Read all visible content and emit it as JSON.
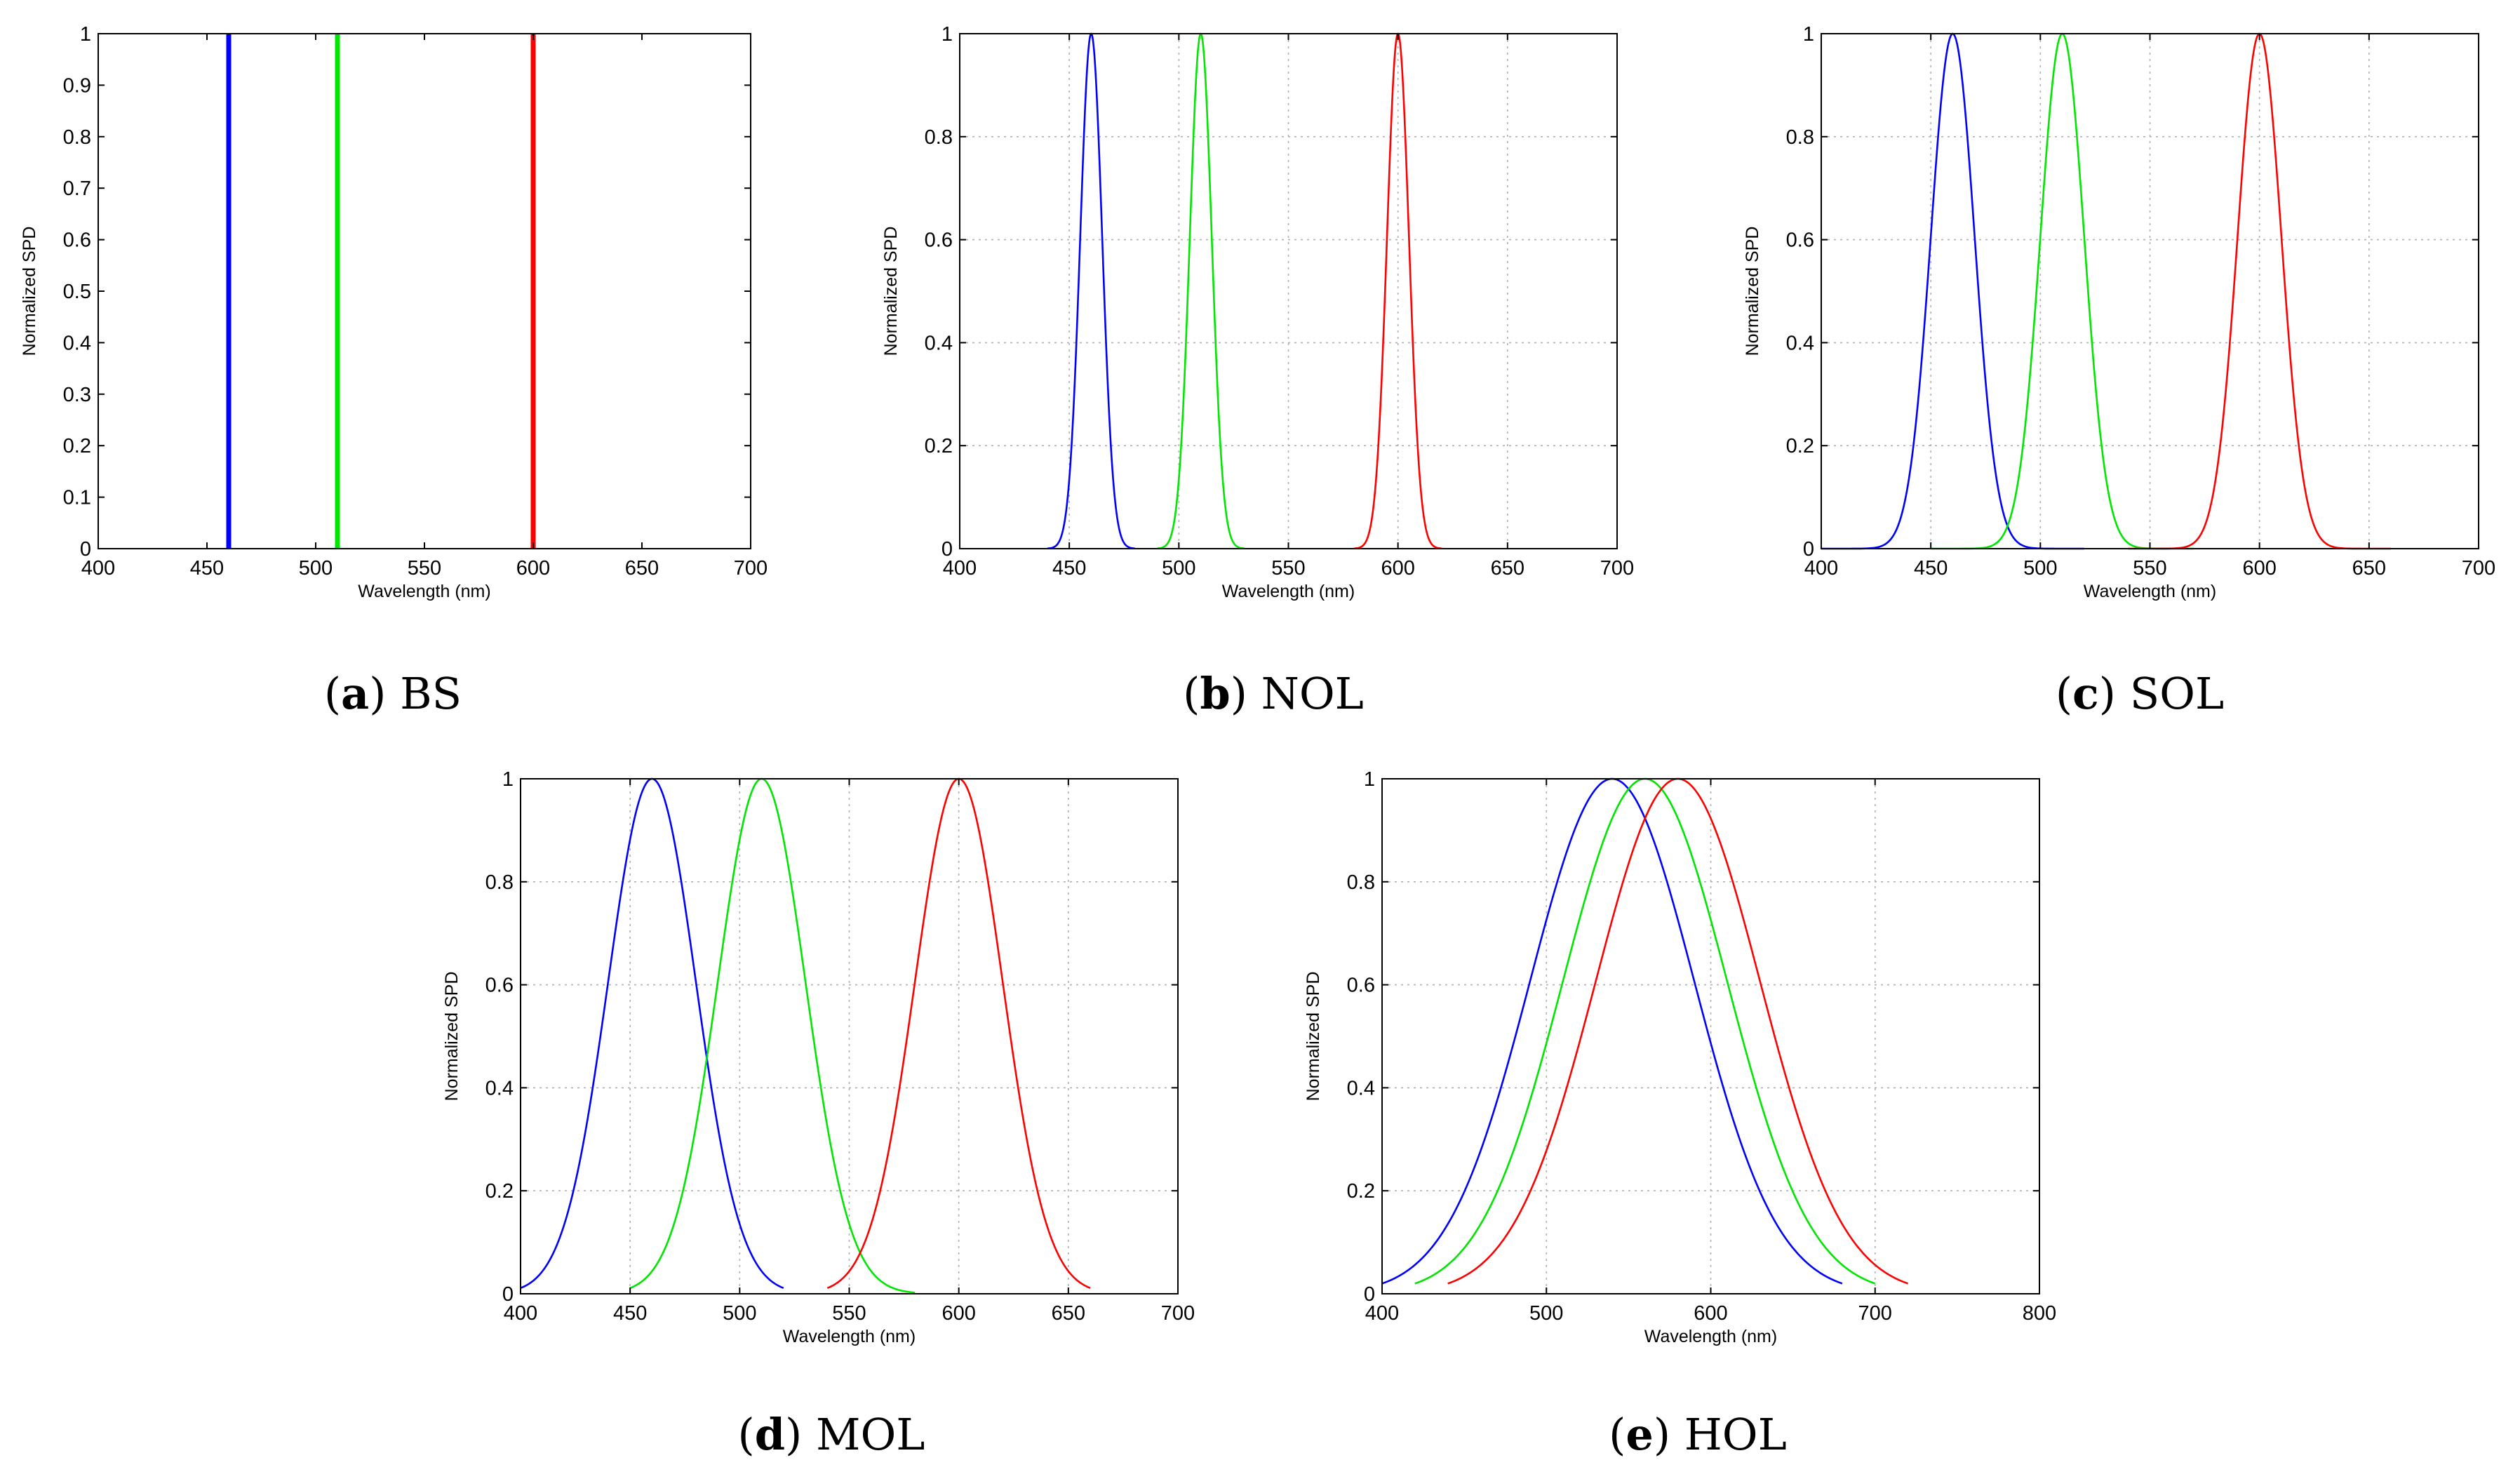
{
  "chart_data": [
    {
      "type": "line",
      "caption_letter": "a",
      "caption_name": "BS",
      "xlabel": "Wavelength (nm)",
      "ylabel": "Normalized SPD",
      "xlim": [
        400,
        700
      ],
      "ylim": [
        0,
        1
      ],
      "xticks": [
        400,
        450,
        500,
        550,
        600,
        650,
        700
      ],
      "yticks": [
        0,
        0.1,
        0.2,
        0.3,
        0.4,
        0.5,
        0.6,
        0.7,
        0.8,
        0.9,
        1
      ],
      "ytick_labels": [
        "0",
        "0.1",
        "0.2",
        "0.3",
        "0.4",
        "0.5",
        "0.6",
        "0.7",
        "0.8",
        "0.9",
        "1"
      ],
      "grid": false,
      "series": [
        {
          "name": "blue",
          "color": "#0000ff",
          "kind": "spike",
          "peak": 460
        },
        {
          "name": "green",
          "color": "#00e600",
          "kind": "spike",
          "peak": 510
        },
        {
          "name": "red",
          "color": "#ff0000",
          "kind": "spike",
          "peak": 600
        }
      ]
    },
    {
      "type": "line",
      "caption_letter": "b",
      "caption_name": "NOL",
      "xlabel": "Wavelength (nm)",
      "ylabel": "Normalized SPD",
      "xlim": [
        400,
        700
      ],
      "ylim": [
        0,
        1
      ],
      "xticks": [
        400,
        450,
        500,
        550,
        600,
        650,
        700
      ],
      "yticks": [
        0,
        0.2,
        0.4,
        0.6,
        0.8,
        1
      ],
      "ytick_labels": [
        "0",
        "0.2",
        "0.4",
        "0.6",
        "0.8",
        "1"
      ],
      "grid": true,
      "series": [
        {
          "name": "blue",
          "color": "#0000ff",
          "kind": "gaussian",
          "peak": 460,
          "sigma": 5,
          "range": [
            440,
            480
          ]
        },
        {
          "name": "green",
          "color": "#00e600",
          "kind": "gaussian",
          "peak": 510,
          "sigma": 5,
          "range": [
            490,
            530
          ]
        },
        {
          "name": "red",
          "color": "#ff0000",
          "kind": "gaussian",
          "peak": 600,
          "sigma": 5,
          "range": [
            580,
            620
          ]
        }
      ]
    },
    {
      "type": "line",
      "caption_letter": "c",
      "caption_name": "SOL",
      "xlabel": "Wavelength (nm)",
      "ylabel": "Normalized SPD",
      "xlim": [
        400,
        700
      ],
      "ylim": [
        0,
        1
      ],
      "xticks": [
        400,
        450,
        500,
        550,
        600,
        650,
        700
      ],
      "yticks": [
        0,
        0.2,
        0.4,
        0.6,
        0.8,
        1
      ],
      "ytick_labels": [
        "0",
        "0.2",
        "0.4",
        "0.6",
        "0.8",
        "1"
      ],
      "grid": true,
      "series": [
        {
          "name": "blue",
          "color": "#0000ff",
          "kind": "gaussian",
          "peak": 460,
          "sigma": 10,
          "range": [
            400,
            520
          ]
        },
        {
          "name": "green",
          "color": "#00e600",
          "kind": "gaussian",
          "peak": 510,
          "sigma": 10,
          "range": [
            450,
            570
          ]
        },
        {
          "name": "red",
          "color": "#ff0000",
          "kind": "gaussian",
          "peak": 600,
          "sigma": 10,
          "range": [
            540,
            660
          ]
        }
      ]
    },
    {
      "type": "line",
      "caption_letter": "d",
      "caption_name": "MOL",
      "xlabel": "Wavelength (nm)",
      "ylabel": "Normalized SPD",
      "xlim": [
        400,
        700
      ],
      "ylim": [
        0,
        1
      ],
      "xticks": [
        400,
        450,
        500,
        550,
        600,
        650,
        700
      ],
      "yticks": [
        0,
        0.2,
        0.4,
        0.6,
        0.8,
        1
      ],
      "ytick_labels": [
        "0",
        "0.2",
        "0.4",
        "0.6",
        "0.8",
        "1"
      ],
      "grid": true,
      "series": [
        {
          "name": "blue",
          "color": "#0000ff",
          "kind": "gaussian",
          "peak": 460,
          "sigma": 20,
          "range": [
            400,
            520
          ]
        },
        {
          "name": "green",
          "color": "#00e600",
          "kind": "gaussian",
          "peak": 510,
          "sigma": 20,
          "range": [
            450,
            580
          ]
        },
        {
          "name": "red",
          "color": "#ff0000",
          "kind": "gaussian",
          "peak": 600,
          "sigma": 20,
          "range": [
            540,
            660
          ]
        }
      ]
    },
    {
      "type": "line",
      "caption_letter": "e",
      "caption_name": "HOL",
      "xlabel": "Wavelength (nm)",
      "ylabel": "Normalized SPD",
      "xlim": [
        400,
        800
      ],
      "ylim": [
        0,
        1
      ],
      "xticks": [
        400,
        500,
        600,
        700,
        800
      ],
      "yticks": [
        0,
        0.2,
        0.4,
        0.6,
        0.8,
        1
      ],
      "ytick_labels": [
        "0",
        "0.2",
        "0.4",
        "0.6",
        "0.8",
        "1"
      ],
      "grid": true,
      "series": [
        {
          "name": "blue",
          "color": "#0000ff",
          "kind": "gaussian",
          "peak": 540,
          "sigma": 50,
          "range": [
            400,
            680
          ]
        },
        {
          "name": "green",
          "color": "#00e600",
          "kind": "gaussian",
          "peak": 560,
          "sigma": 50,
          "range": [
            420,
            700
          ]
        },
        {
          "name": "red",
          "color": "#ff0000",
          "kind": "gaussian",
          "peak": 580,
          "sigma": 50,
          "range": [
            440,
            720
          ]
        }
      ]
    }
  ]
}
